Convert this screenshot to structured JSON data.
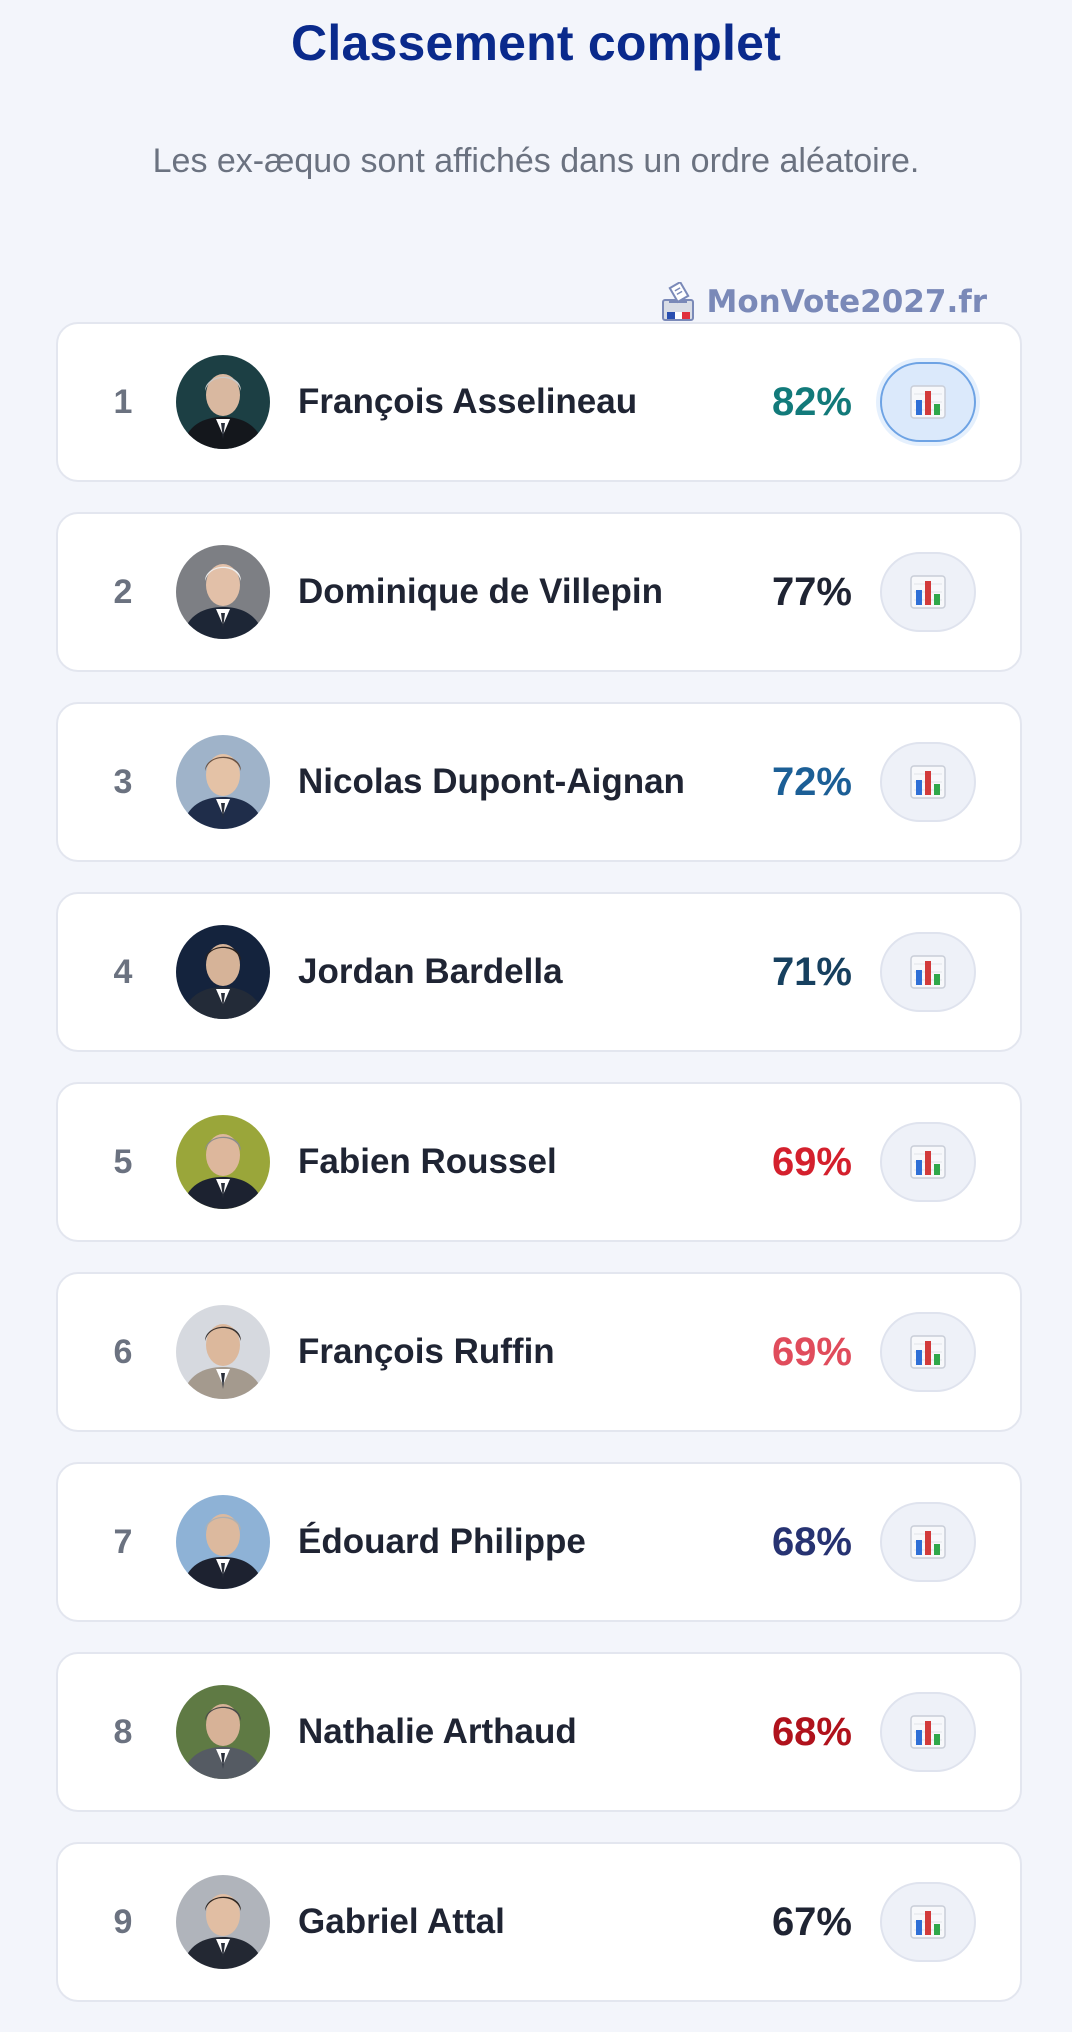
{
  "header": {
    "title": "Classement complet",
    "subtitle": "Les ex-æquo sont affichés dans un ordre aléatoire."
  },
  "brand": {
    "name": "MonVote2027.fr",
    "icon": "ballot-box-icon",
    "color": "#7a89b8"
  },
  "ranking": [
    {
      "rank": "1",
      "name": "François Asselineau",
      "score": "82%",
      "score_color": "#127a7a",
      "active": true,
      "avatar_bg": "#1c3f44",
      "avatar_face": "#d9b8a0",
      "avatar_hair": "#c9c9c9",
      "avatar_suit": "#14171c"
    },
    {
      "rank": "2",
      "name": "Dominique de Villepin",
      "score": "77%",
      "score_color": "#1f2433",
      "active": false,
      "avatar_bg": "#7d7f84",
      "avatar_face": "#e2c0a8",
      "avatar_hair": "#eeeeee",
      "avatar_suit": "#1d2636"
    },
    {
      "rank": "3",
      "name": "Nicolas Dupont-Aignan",
      "score": "72%",
      "score_color": "#1c5f96",
      "active": false,
      "avatar_bg": "#9fb3c9",
      "avatar_face": "#e4c2a6",
      "avatar_hair": "#6a5242",
      "avatar_suit": "#1f2d4a"
    },
    {
      "rank": "4",
      "name": "Jordan Bardella",
      "score": "71%",
      "score_color": "#17405f",
      "active": false,
      "avatar_bg": "#14233d",
      "avatar_face": "#d6b398",
      "avatar_hair": "#2b221d",
      "avatar_suit": "#232b38"
    },
    {
      "rank": "5",
      "name": "Fabien Roussel",
      "score": "69%",
      "score_color": "#d4202d",
      "active": false,
      "avatar_bg": "#9aa63a",
      "avatar_face": "#ddb79c",
      "avatar_hair": "#8d8d8d",
      "avatar_suit": "#1c2230"
    },
    {
      "rank": "6",
      "name": "François Ruffin",
      "score": "69%",
      "score_color": "#e04c5c",
      "active": false,
      "avatar_bg": "#d6d9df",
      "avatar_face": "#dcb89c",
      "avatar_hair": "#3a3330",
      "avatar_suit": "#a49a8e"
    },
    {
      "rank": "7",
      "name": "Édouard Philippe",
      "score": "68%",
      "score_color": "#273372",
      "active": false,
      "avatar_bg": "#8eb2d6",
      "avatar_face": "#dcb99e",
      "avatar_hair": "#b0b0b0",
      "avatar_suit": "#1d2230"
    },
    {
      "rank": "8",
      "name": "Nathalie Arthaud",
      "score": "68%",
      "score_color": "#b0121c",
      "active": false,
      "avatar_bg": "#5f7a44",
      "avatar_face": "#d7b297",
      "avatar_hair": "#4a4a4a",
      "avatar_suit": "#555b63"
    },
    {
      "rank": "9",
      "name": "Gabriel Attal",
      "score": "67%",
      "score_color": "#1f2433",
      "active": false,
      "avatar_bg": "#b0b4bb",
      "avatar_face": "#e1bea3",
      "avatar_hair": "#2f2620",
      "avatar_suit": "#232833"
    }
  ],
  "stats_button": {
    "icon": "bar-chart-icon"
  }
}
